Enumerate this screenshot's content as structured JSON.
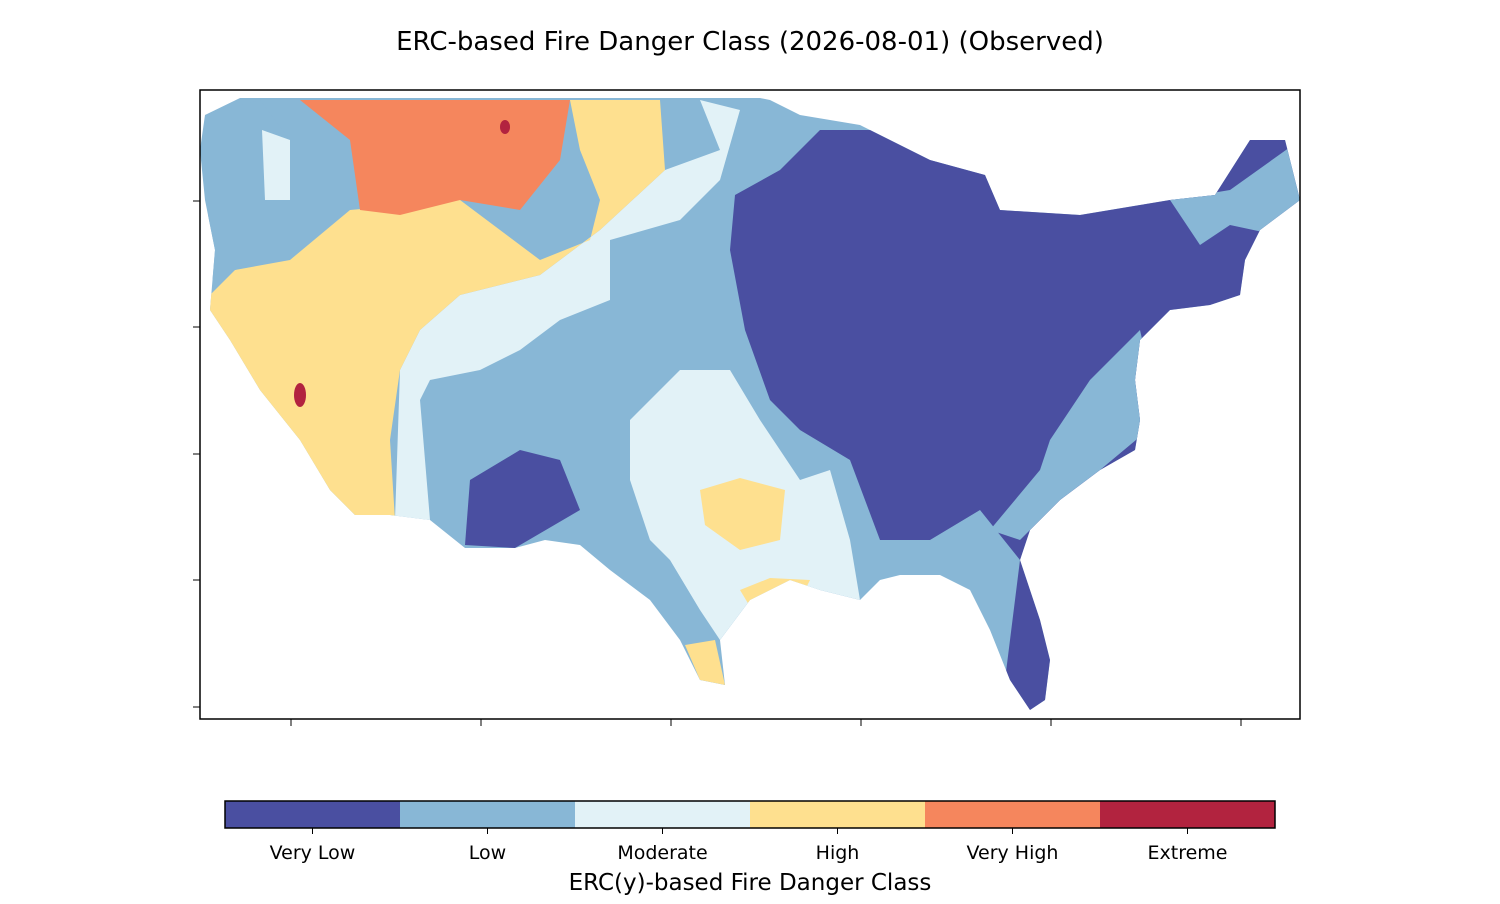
{
  "title": "ERC-based Fire Danger Class (2026-08-01) (Observed)",
  "colorbar": {
    "label": "ERC(y)-based Fire Danger Class",
    "classes": [
      {
        "name": "Very Low",
        "color": "#4a4fa1"
      },
      {
        "name": "Low",
        "color": "#88b7d6"
      },
      {
        "name": "Moderate",
        "color": "#e2f2f7"
      },
      {
        "name": "High",
        "color": "#fee08f"
      },
      {
        "name": "Very High",
        "color": "#f5865d"
      },
      {
        "name": "Extreme",
        "color": "#b2233f"
      }
    ]
  }
}
